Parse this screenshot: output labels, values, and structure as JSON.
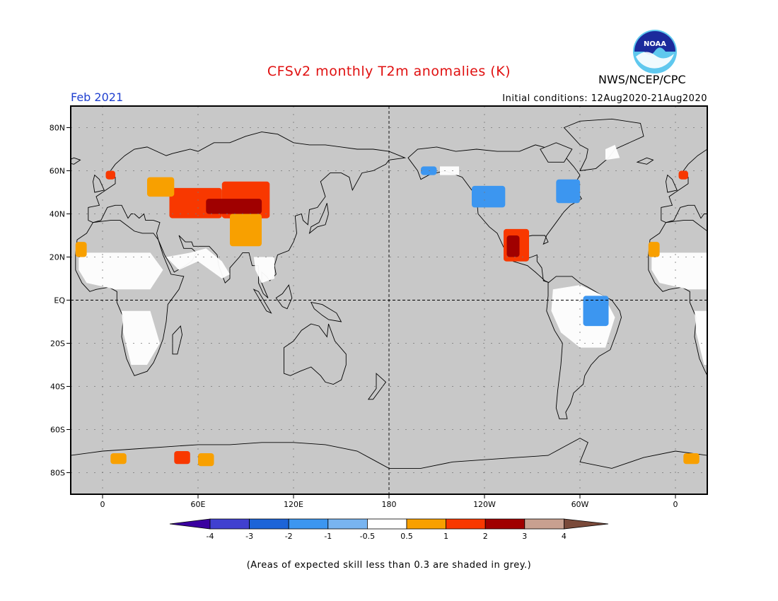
{
  "header": {
    "title": "CFSv2 monthly T2m anomalies (K)",
    "org": "NWS/NCEP/CPC",
    "logo_text": "NOAA",
    "month": "Feb 2021",
    "initial_conditions": "Initial conditions: 12Aug2020-21Aug2020"
  },
  "map": {
    "projection": "equirectangular",
    "lon_range": [
      -20,
      380
    ],
    "lat_range": [
      -90,
      90
    ],
    "lat_ticks": [
      {
        "lat": 80,
        "label": "80N"
      },
      {
        "lat": 60,
        "label": "60N"
      },
      {
        "lat": 40,
        "label": "40N"
      },
      {
        "lat": 20,
        "label": "20N"
      },
      {
        "lat": 0,
        "label": "EQ"
      },
      {
        "lat": -20,
        "label": "20S"
      },
      {
        "lat": -40,
        "label": "40S"
      },
      {
        "lat": -60,
        "label": "60S"
      },
      {
        "lat": -80,
        "label": "80S"
      }
    ],
    "lon_ticks": [
      {
        "lon": 0,
        "label": "0"
      },
      {
        "lon": 60,
        "label": "60E"
      },
      {
        "lon": 120,
        "label": "120E"
      },
      {
        "lon": 180,
        "label": "180"
      },
      {
        "lon": 240,
        "label": "120W"
      },
      {
        "lon": 300,
        "label": "60W"
      },
      {
        "lon": 360,
        "label": "0"
      }
    ],
    "background_color": "#c8c8c8",
    "land_skill_color": "#ffffff",
    "anomaly_regions": [
      {
        "name": "central-asia",
        "lon": [
          42,
          75
        ],
        "lat": [
          38,
          52
        ],
        "value": 2
      },
      {
        "name": "mongolia",
        "lon": [
          75,
          105
        ],
        "lat": [
          38,
          55
        ],
        "value": 2
      },
      {
        "name": "central-asia-core",
        "lon": [
          65,
          100
        ],
        "lat": [
          40,
          47
        ],
        "value": 3
      },
      {
        "name": "tibet",
        "lon": [
          80,
          100
        ],
        "lat": [
          25,
          40
        ],
        "value": 1
      },
      {
        "name": "eastern-europe",
        "lon": [
          28,
          45
        ],
        "lat": [
          48,
          57
        ],
        "value": 1
      },
      {
        "name": "scandinavia",
        "lon": [
          2,
          8
        ],
        "lat": [
          56,
          60
        ],
        "value": 2
      },
      {
        "name": "mexico-texas",
        "lon": [
          252,
          268
        ],
        "lat": [
          18,
          33
        ],
        "value": 2
      },
      {
        "name": "mexico-core",
        "lon": [
          254,
          262
        ],
        "lat": [
          20,
          30
        ],
        "value": 3
      },
      {
        "name": "north-america-west",
        "lon": [
          232,
          253
        ],
        "lat": [
          43,
          53
        ],
        "value": -1
      },
      {
        "name": "north-america-east",
        "lon": [
          285,
          300
        ],
        "lat": [
          45,
          56
        ],
        "value": -1
      },
      {
        "name": "alaska",
        "lon": [
          200,
          210
        ],
        "lat": [
          58,
          62
        ],
        "value": -1
      },
      {
        "name": "amazon",
        "lon": [
          302,
          318
        ],
        "lat": [
          -12,
          2
        ],
        "value": -1
      },
      {
        "name": "west-africa",
        "lon": [
          -17,
          -10
        ],
        "lat": [
          20,
          27
        ],
        "value": 1
      },
      {
        "name": "antarctica-1",
        "lon": [
          45,
          55
        ],
        "lat": [
          -76,
          -70
        ],
        "value": 2
      },
      {
        "name": "antarctica-2",
        "lon": [
          60,
          70
        ],
        "lat": [
          -77,
          -71
        ],
        "value": 1
      },
      {
        "name": "antarctica-3",
        "lon": [
          5,
          15
        ],
        "lat": [
          -76,
          -71
        ],
        "value": 1
      }
    ]
  },
  "colorbar": {
    "colors": [
      "#3a00a0",
      "#4040d0",
      "#1c64d8",
      "#3c96f0",
      "#78b4f0",
      "#ffffff",
      "#f8a000",
      "#f83800",
      "#a00000",
      "#c8a090",
      "#7a4a3a"
    ],
    "labels": [
      "-4",
      "-3",
      "-2",
      "-1",
      "-0.5",
      "0.5",
      "1",
      "2",
      "3",
      "4"
    ]
  },
  "footnote": "(Areas of expected skill less than 0.3 are shaded in grey.)"
}
